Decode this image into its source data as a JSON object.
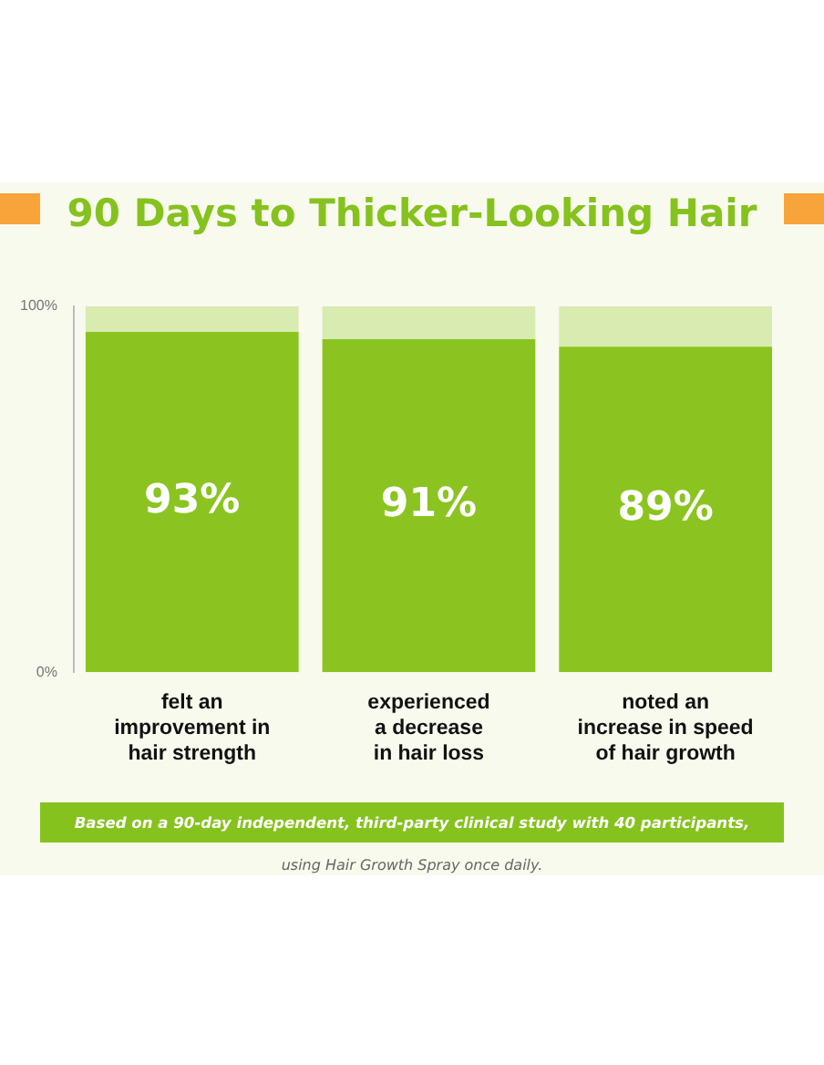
{
  "chart_data": {
    "type": "bar",
    "title": "90 Days to Thicker-Looking Hair",
    "categories": [
      "felt an\nimprovement in\nhair strength",
      "experienced\na decrease\nin hair loss",
      "noted an\nincrease in speed\nof hair growth"
    ],
    "series": [
      {
        "color": "#8bc420",
        "values": [
          93,
          91,
          89
        ],
        "value_labels": [
          "93%",
          "91%",
          "89%"
        ]
      },
      {
        "color": "#d8ebb0",
        "values": [
          7,
          9,
          11
        ]
      }
    ],
    "stacked": true,
    "ylim": [
      0,
      100
    ],
    "yticks": [
      {
        "value": 0,
        "label": "0%"
      },
      {
        "value": 100,
        "label": "100%"
      }
    ],
    "grid": false,
    "legend": false,
    "annotations": [
      "Based on a 90-day independent, third-party clinical study with 40 participants,",
      "using Hair Growth Spray once daily."
    ]
  }
}
